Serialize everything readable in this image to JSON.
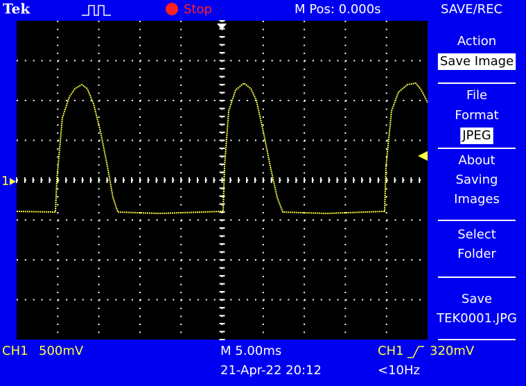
{
  "header": {
    "brand": "Tek",
    "status": "Stop",
    "position": "M Pos: 0.000s",
    "menu_title": "SAVE/REC"
  },
  "screen": {
    "channel_marker": "1"
  },
  "menu": {
    "items": [
      {
        "lines": [
          "Action"
        ],
        "selected": "Save Image"
      },
      {
        "lines": [
          "File",
          "Format"
        ],
        "selected": "JPEG"
      },
      {
        "lines": [
          "About",
          "Saving",
          "Images"
        ]
      },
      {
        "lines": [
          "Select",
          "Folder"
        ]
      },
      {
        "lines": [
          "Save",
          "TEK0001.JPG"
        ]
      }
    ]
  },
  "footer": {
    "channel": "CH1",
    "scale": "500mV",
    "timebase": "M 5.00ms",
    "trigger_source": "CH1",
    "trigger_level": "320mV",
    "datetime": "21-Apr-22 20:12",
    "frequency": "<10Hz"
  }
}
